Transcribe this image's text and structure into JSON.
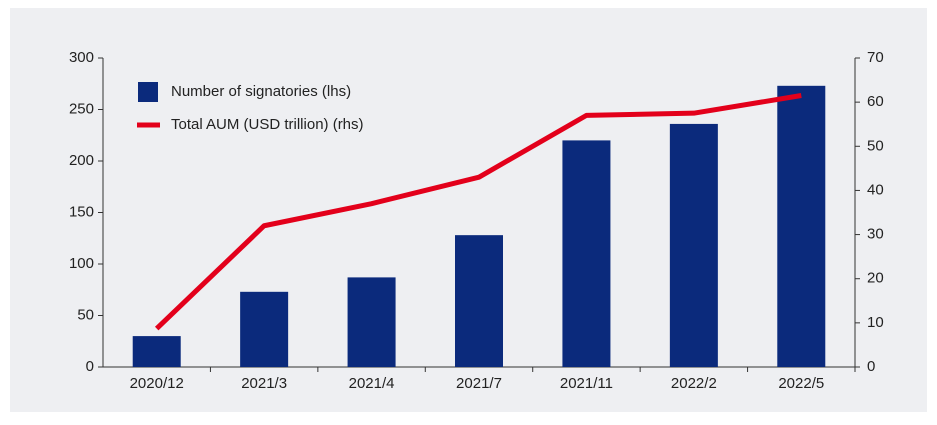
{
  "chart_data": {
    "type": "bar_line",
    "categories": [
      "2020/12",
      "2021/3",
      "2021/4",
      "2021/7",
      "2021/11",
      "2022/2",
      "2022/5"
    ],
    "series": [
      {
        "name": "Number of signatories (lhs)",
        "type": "bar",
        "axis": "y",
        "color": "#0b2a7c",
        "values": [
          30,
          73,
          87,
          128,
          220,
          236,
          273
        ]
      },
      {
        "name": "Total AUM (USD trillion) (rhs)",
        "type": "line",
        "axis": "y2",
        "color": "#e3001b",
        "values": [
          8.7,
          32,
          37,
          43,
          57,
          57.5,
          61.5
        ]
      }
    ],
    "ylim": [
      0,
      300
    ],
    "yticks": [
      0,
      50,
      100,
      150,
      200,
      250,
      300
    ],
    "y2lim": [
      0,
      70
    ],
    "y2ticks": [
      0,
      10,
      20,
      30,
      40,
      50,
      60,
      70
    ],
    "legend": "upper left"
  }
}
